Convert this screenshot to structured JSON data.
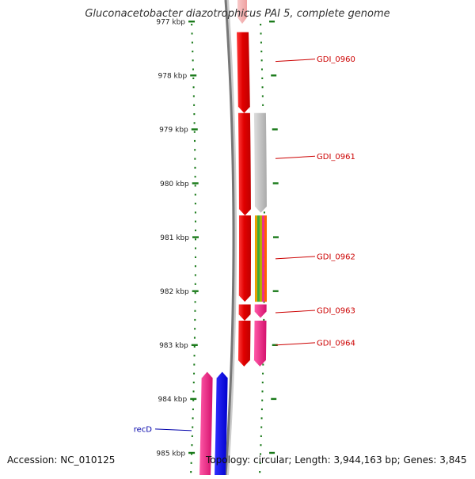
{
  "title": "Gluconacetobacter diazotrophicus PAI 5, complete genome",
  "footer": {
    "accession": "Accession: NC_010125",
    "summary": "Topology: circular; Length: 3,944,163 bp; Genes: 3,845"
  },
  "ruler_ticks": [
    {
      "kbp": 977,
      "label": "977 kbp"
    },
    {
      "kbp": 978,
      "label": "978 kbp"
    },
    {
      "kbp": 979,
      "label": "979 kbp"
    },
    {
      "kbp": 980,
      "label": "980 kbp"
    },
    {
      "kbp": 981,
      "label": "981 kbp"
    },
    {
      "kbp": 982,
      "label": "982 kbp"
    },
    {
      "kbp": 983,
      "label": "983 kbp"
    },
    {
      "kbp": 984,
      "label": "984 kbp"
    },
    {
      "kbp": 985,
      "label": "985 kbp"
    }
  ],
  "gene_labels": [
    {
      "name": "GDI_0960",
      "side": "right",
      "kbp": 977.7
    },
    {
      "name": "GDI_0961",
      "side": "right",
      "kbp": 979.5
    },
    {
      "name": "GDI_0962",
      "side": "right",
      "kbp": 981.36
    },
    {
      "name": "GDI_0963",
      "side": "right",
      "kbp": 982.36
    },
    {
      "name": "GDI_0964",
      "side": "right",
      "kbp": 982.96
    },
    {
      "name": "recD",
      "side": "left",
      "kbp": 984.56
    }
  ],
  "features": [
    {
      "type": "gene",
      "strand": "+",
      "start_kbp": 976.6,
      "end_kbp": 976.75,
      "color": "#f4b8b8"
    },
    {
      "type": "gene",
      "strand": "+",
      "start_kbp": 977.2,
      "end_kbp": 978.7,
      "color": "#e8000b"
    },
    {
      "type": "gene",
      "strand": "+",
      "start_kbp": 978.7,
      "end_kbp": 980.6,
      "color": "#e8000b"
    },
    {
      "type": "gene",
      "strand": "+",
      "start_kbp": 980.6,
      "end_kbp": 982.2,
      "color": "#e8000b"
    },
    {
      "type": "gene",
      "strand": "+",
      "start_kbp": 982.25,
      "end_kbp": 982.55,
      "color": "#e8000b"
    },
    {
      "type": "gene",
      "strand": "+",
      "start_kbp": 982.55,
      "end_kbp": 983.4,
      "color": "#e8000b"
    },
    {
      "type": "cds",
      "strand": "+",
      "start_kbp": 978.7,
      "end_kbp": 980.55,
      "color": "#c8c8c8"
    },
    {
      "type": "cds",
      "strand": "+",
      "start_kbp": 980.6,
      "end_kbp": 982.2,
      "color": "multi"
    },
    {
      "type": "cds",
      "strand": "+",
      "start_kbp": 982.25,
      "end_kbp": 982.5,
      "color": "#ee2f8a"
    },
    {
      "type": "cds",
      "strand": "+",
      "start_kbp": 982.55,
      "end_kbp": 983.4,
      "color": "#ee2f8a"
    },
    {
      "type": "cds",
      "strand": "-",
      "start_kbp": 983.5,
      "end_kbp": 985.5,
      "color": "#ee2f8a"
    },
    {
      "type": "gene",
      "strand": "-",
      "start_kbp": 983.5,
      "end_kbp": 985.5,
      "color": "#0000ee"
    }
  ],
  "colors": {
    "ruler_tick": "#1a7a1a",
    "label_line": "#cc0000",
    "label_text_right": "#cc0000",
    "label_text_left": "#0000aa",
    "backbone": "#777777"
  }
}
